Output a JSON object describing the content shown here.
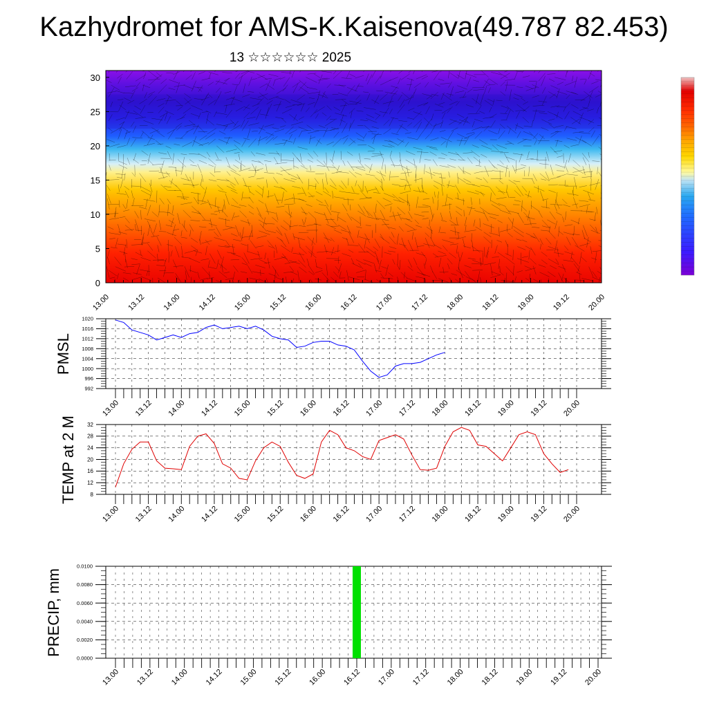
{
  "header": {
    "title": "Kazhydromet for AMS-K.Kaisenova(49.787 82.453)",
    "subtitle": "13 ☆☆☆☆☆☆ 2025"
  },
  "time_labels": [
    "13.00",
    "13.12",
    "14.00",
    "14.12",
    "15.00",
    "15.12",
    "16.00",
    "16.12",
    "17.00",
    "17.12",
    "18.00",
    "18.12",
    "19.00",
    "19.12",
    "20.00"
  ],
  "colors": {
    "pmsl_line": "#0000ff",
    "temp_line": "#e00000",
    "precip_bar": "#00e000",
    "grid": "#000000"
  },
  "chart_data": [
    {
      "type": "heatmap",
      "name": "cross-section",
      "ylabel": "",
      "ylim": [
        0,
        31
      ],
      "yticks": [
        0,
        5,
        10,
        15,
        20,
        25,
        30
      ],
      "overlay": "wind streamlines/vectors",
      "colorbar": [
        "#7b00d6",
        "#3a1cff",
        "#1f6dff",
        "#2aa8f0",
        "#bfe3f5",
        "#fffaa0",
        "#ffd700",
        "#ffa500",
        "#ff6000",
        "#ff2a00",
        "#e20000",
        "#d84040",
        "#f0c0c0"
      ],
      "colorbar_labels": []
    },
    {
      "type": "line",
      "ylabel": "PMSL",
      "ylim": [
        992,
        1020
      ],
      "yticks": [
        992,
        996,
        1000,
        1004,
        1008,
        1012,
        1016,
        1020
      ],
      "x_step_hours": 3,
      "values": [
        1019.5,
        1018.5,
        1015.5,
        1014.5,
        1013.5,
        1011.5,
        1012.5,
        1013.5,
        1012.5,
        1014.0,
        1014.5,
        1016.5,
        1017.5,
        1016.0,
        1016.5,
        1017.0,
        1016.0,
        1017.0,
        1015.5,
        1013.0,
        1012.0,
        1011.5,
        1008.5,
        1009.0,
        1010.5,
        1011.0,
        1011.0,
        1009.5,
        1009.0,
        1007.5,
        1003.0,
        999.0,
        996.5,
        997.5,
        1001.0,
        1002.0,
        1002.0,
        1002.5,
        1004.0,
        1005.5,
        1006.5
      ]
    },
    {
      "type": "line",
      "ylabel": "TEMP at 2 M",
      "ylim": [
        8,
        32
      ],
      "yticks": [
        8,
        12,
        16,
        20,
        24,
        28,
        32
      ],
      "x_step_hours": 3,
      "values": [
        10.5,
        18.5,
        23.5,
        26.0,
        26.0,
        19.5,
        17.0,
        16.8,
        16.5,
        24.5,
        28.0,
        28.8,
        25.5,
        18.5,
        17.0,
        13.5,
        13.0,
        19.5,
        24.0,
        26.0,
        24.5,
        19.0,
        14.5,
        13.5,
        15.0,
        26.0,
        30.0,
        28.5,
        24.0,
        23.0,
        21.0,
        20.0,
        26.5,
        27.5,
        28.5,
        27.0,
        21.5,
        16.5,
        16.3,
        17.0,
        24.5,
        29.5,
        31.0,
        30.0,
        25.0,
        24.5,
        22.0,
        19.5,
        24.0,
        28.5,
        29.5,
        28.5,
        22.0,
        18.5,
        15.5,
        16.5
      ]
    },
    {
      "type": "bar",
      "ylabel": "PRECIP, mm",
      "ylim": [
        0,
        0.01
      ],
      "yticks": [
        0,
        0.002,
        0.004,
        0.006,
        0.008,
        0.01
      ],
      "ytick_labels": [
        "0.0000",
        "0.0020",
        "0.0040",
        "0.0060",
        "0.0080",
        "0.0100"
      ],
      "bars": [
        {
          "x_hours": 84,
          "value": 0.01
        }
      ]
    }
  ]
}
